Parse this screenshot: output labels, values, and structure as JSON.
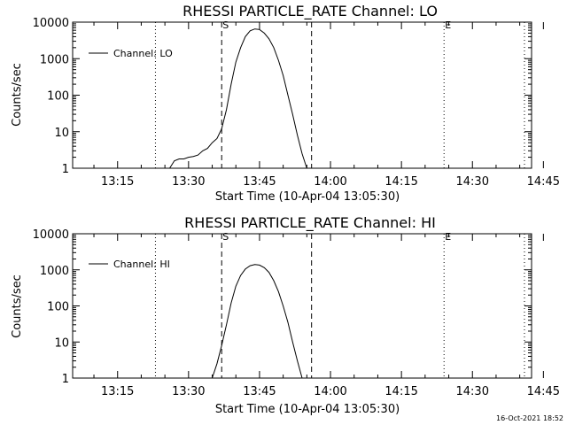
{
  "chart_data": [
    {
      "type": "line",
      "title": "RHESSI PARTICLE_RATE Channel: LO",
      "xlabel": "Start Time (10-Apr-04 13:05:30)",
      "ylabel": "Counts/sec",
      "yscale": "log",
      "ylim": [
        1,
        10000
      ],
      "xlim_minutes": [
        5.5,
        102.5
      ],
      "x_ticks": [
        "13:15",
        "13:30",
        "13:45",
        "14:00",
        "14:15",
        "14:30",
        "14:45"
      ],
      "y_ticks": [
        "1",
        "10",
        "100",
        "1000",
        "10000"
      ],
      "legend": {
        "position": "top-left",
        "entries": [
          "Channel: LO"
        ]
      },
      "markers": [
        {
          "label": "S",
          "time": "13:37",
          "style": "dashed"
        },
        {
          "label": "",
          "time": "13:56",
          "style": "dashed"
        },
        {
          "label": "",
          "time": "13:23",
          "style": "dotted"
        },
        {
          "label": "E",
          "time": "14:24",
          "style": "dotted"
        },
        {
          "label": "",
          "time": "14:41",
          "style": "dotted"
        }
      ],
      "series": [
        {
          "name": "Channel: LO",
          "x": [
            "13:26",
            "13:27",
            "13:28",
            "13:29",
            "13:30",
            "13:31",
            "13:32",
            "13:33",
            "13:34",
            "13:35",
            "13:36",
            "13:37",
            "13:38",
            "13:39",
            "13:40",
            "13:41",
            "13:42",
            "13:43",
            "13:44",
            "13:45",
            "13:46",
            "13:47",
            "13:48",
            "13:49",
            "13:50",
            "13:51",
            "13:52",
            "13:53",
            "13:54",
            "13:55"
          ],
          "values": [
            1,
            1.6,
            1.8,
            1.8,
            2,
            2.1,
            2.3,
            3,
            3.5,
            5,
            6.5,
            12,
            40,
            200,
            800,
            2000,
            4000,
            5800,
            6500,
            6300,
            5000,
            3500,
            2000,
            900,
            350,
            100,
            30,
            8,
            2.5,
            1
          ]
        }
      ]
    },
    {
      "type": "line",
      "title": "RHESSI PARTICLE_RATE Channel: HI",
      "xlabel": "Start Time (10-Apr-04 13:05:30)",
      "ylabel": "Counts/sec",
      "yscale": "log",
      "ylim": [
        1,
        10000
      ],
      "xlim_minutes": [
        5.5,
        102.5
      ],
      "x_ticks": [
        "13:15",
        "13:30",
        "13:45",
        "14:00",
        "14:15",
        "14:30",
        "14:45"
      ],
      "y_ticks": [
        "1",
        "10",
        "100",
        "1000",
        "10000"
      ],
      "legend": {
        "position": "top-left",
        "entries": [
          "Channel: HI"
        ]
      },
      "markers": [
        {
          "label": "S",
          "time": "13:37",
          "style": "dashed"
        },
        {
          "label": "",
          "time": "13:56",
          "style": "dashed"
        },
        {
          "label": "",
          "time": "13:23",
          "style": "dotted"
        },
        {
          "label": "E",
          "time": "14:24",
          "style": "dotted"
        },
        {
          "label": "",
          "time": "14:41",
          "style": "dotted"
        }
      ],
      "series": [
        {
          "name": "Channel: HI",
          "x": [
            "13:35",
            "13:36",
            "13:37",
            "13:38",
            "13:39",
            "13:40",
            "13:41",
            "13:42",
            "13:43",
            "13:44",
            "13:45",
            "13:46",
            "13:47",
            "13:48",
            "13:49",
            "13:50",
            "13:51",
            "13:52",
            "13:53",
            "13:54"
          ],
          "values": [
            1,
            2.5,
            8,
            30,
            120,
            350,
            700,
            1050,
            1300,
            1400,
            1350,
            1150,
            850,
            500,
            250,
            100,
            35,
            10,
            3,
            1
          ]
        }
      ]
    }
  ],
  "footer": {
    "timestamp": "16-Oct-2021 18:52"
  }
}
